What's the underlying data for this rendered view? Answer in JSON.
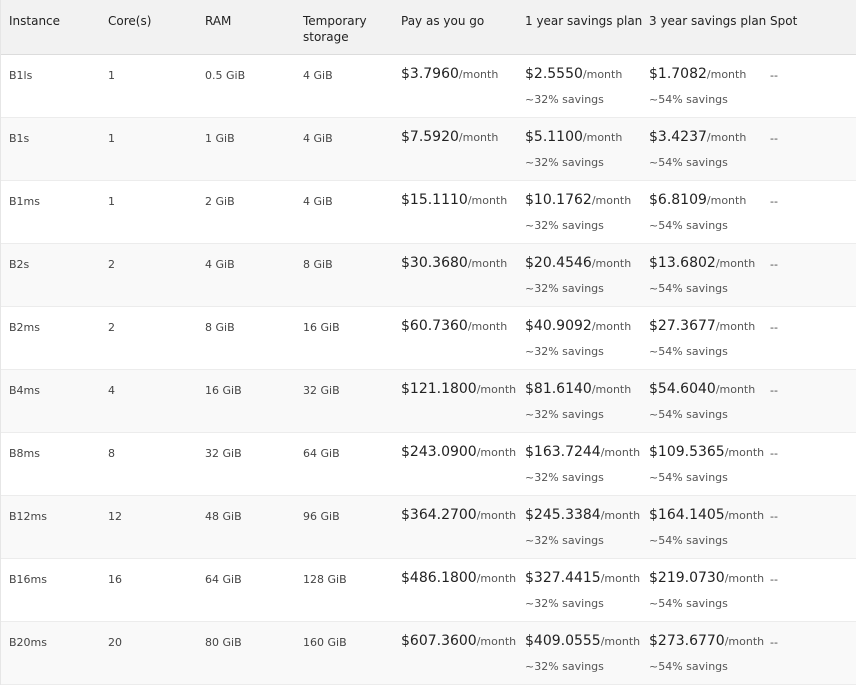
{
  "columns": {
    "instance": "Instance",
    "cores": "Core(s)",
    "ram": "RAM",
    "storage_line1": "Temporary",
    "storage_line2": "storage",
    "payg": "Pay as you go",
    "one_year": "1 year savings plan",
    "three_year": "3 year savings plan",
    "spot": "Spot"
  },
  "unit_label": "/month",
  "one_year_savings_label": "~32% savings",
  "three_year_savings_label": "~54% savings",
  "spot_placeholder": "--",
  "rows": [
    {
      "instance": "B1ls",
      "cores": "1",
      "ram": "0.5 GiB",
      "storage": "4 GiB",
      "payg": "$3.7960",
      "one_year": "$2.5550",
      "three_year": "$1.7082",
      "spot": "--"
    },
    {
      "instance": "B1s",
      "cores": "1",
      "ram": "1 GiB",
      "storage": "4 GiB",
      "payg": "$7.5920",
      "one_year": "$5.1100",
      "three_year": "$3.4237",
      "spot": "--"
    },
    {
      "instance": "B1ms",
      "cores": "1",
      "ram": "2 GiB",
      "storage": "4 GiB",
      "payg": "$15.1110",
      "one_year": "$10.1762",
      "three_year": "$6.8109",
      "spot": "--"
    },
    {
      "instance": "B2s",
      "cores": "2",
      "ram": "4 GiB",
      "storage": "8 GiB",
      "payg": "$30.3680",
      "one_year": "$20.4546",
      "three_year": "$13.6802",
      "spot": "--"
    },
    {
      "instance": "B2ms",
      "cores": "2",
      "ram": "8 GiB",
      "storage": "16 GiB",
      "payg": "$60.7360",
      "one_year": "$40.9092",
      "three_year": "$27.3677",
      "spot": "--"
    },
    {
      "instance": "B4ms",
      "cores": "4",
      "ram": "16 GiB",
      "storage": "32 GiB",
      "payg": "$121.1800",
      "one_year": "$81.6140",
      "three_year": "$54.6040",
      "spot": "--"
    },
    {
      "instance": "B8ms",
      "cores": "8",
      "ram": "32 GiB",
      "storage": "64 GiB",
      "payg": "$243.0900",
      "one_year": "$163.7244",
      "three_year": "$109.5365",
      "spot": "--"
    },
    {
      "instance": "B12ms",
      "cores": "12",
      "ram": "48 GiB",
      "storage": "96 GiB",
      "payg": "$364.2700",
      "one_year": "$245.3384",
      "three_year": "$164.1405",
      "spot": "--"
    },
    {
      "instance": "B16ms",
      "cores": "16",
      "ram": "64 GiB",
      "storage": "128 GiB",
      "payg": "$486.1800",
      "one_year": "$327.4415",
      "three_year": "$219.0730",
      "spot": "--"
    },
    {
      "instance": "B20ms",
      "cores": "20",
      "ram": "80 GiB",
      "storage": "160 GiB",
      "payg": "$607.3600",
      "one_year": "$409.0555",
      "three_year": "$273.6770",
      "spot": "--"
    }
  ]
}
